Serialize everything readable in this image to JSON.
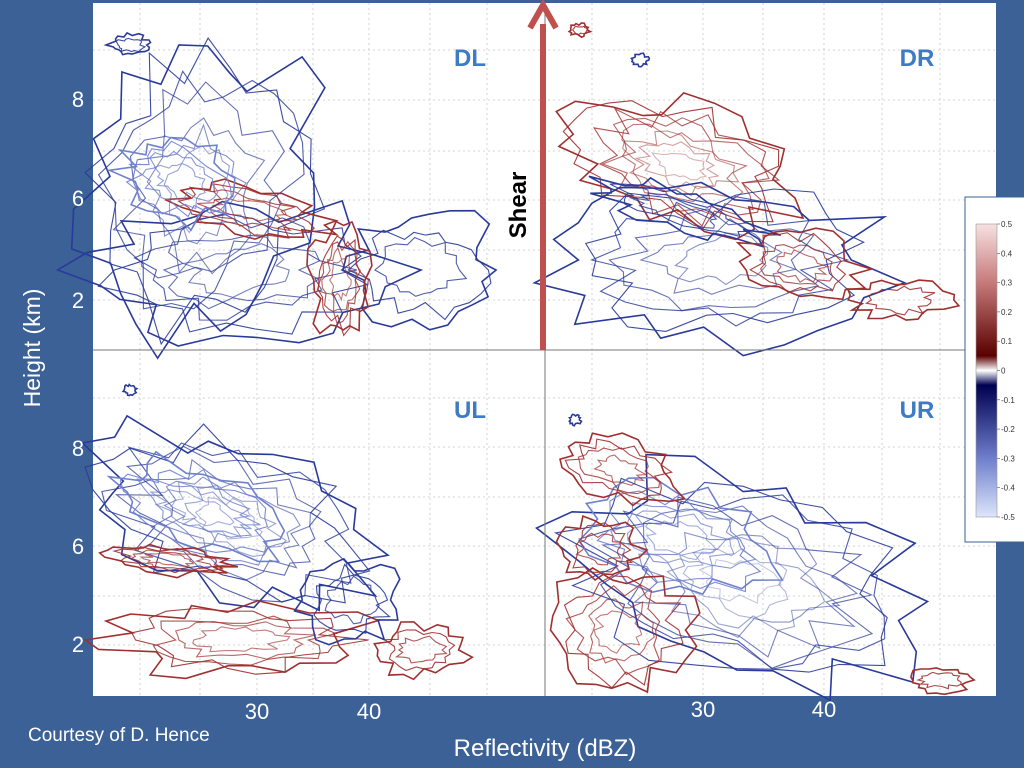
{
  "chart_data": {
    "type": "contour",
    "panels": [
      {
        "id": "DL",
        "label": "DL"
      },
      {
        "id": "DR",
        "label": "DR"
      },
      {
        "id": "UL",
        "label": "UL"
      },
      {
        "id": "UR",
        "label": "UR"
      }
    ],
    "ylabel": "Height (km)",
    "xlabel": "Reflectivity (dBZ)",
    "y_ticks": [
      "8",
      "6",
      "2"
    ],
    "x_ticks": [
      "30",
      "40"
    ],
    "arrow_label": "Shear",
    "colorbar": {
      "ticks": [
        "0.5",
        "0.4",
        "0.3",
        "0.2",
        "0.1",
        "0",
        "-0.1",
        "-0.2",
        "-0.3",
        "-0.4",
        "-0.5"
      ],
      "positive_color": "#8b1a1a",
      "negative_color": "#1a237e"
    },
    "grid": true
  },
  "credit": "Courtesy of D. Hence",
  "colors": {
    "background": "#3b6196",
    "panel_label": "#3d7bc4",
    "arrow": "#c0504d",
    "positive_contour": "#a03030",
    "negative_contour": "#2a3a9a"
  }
}
